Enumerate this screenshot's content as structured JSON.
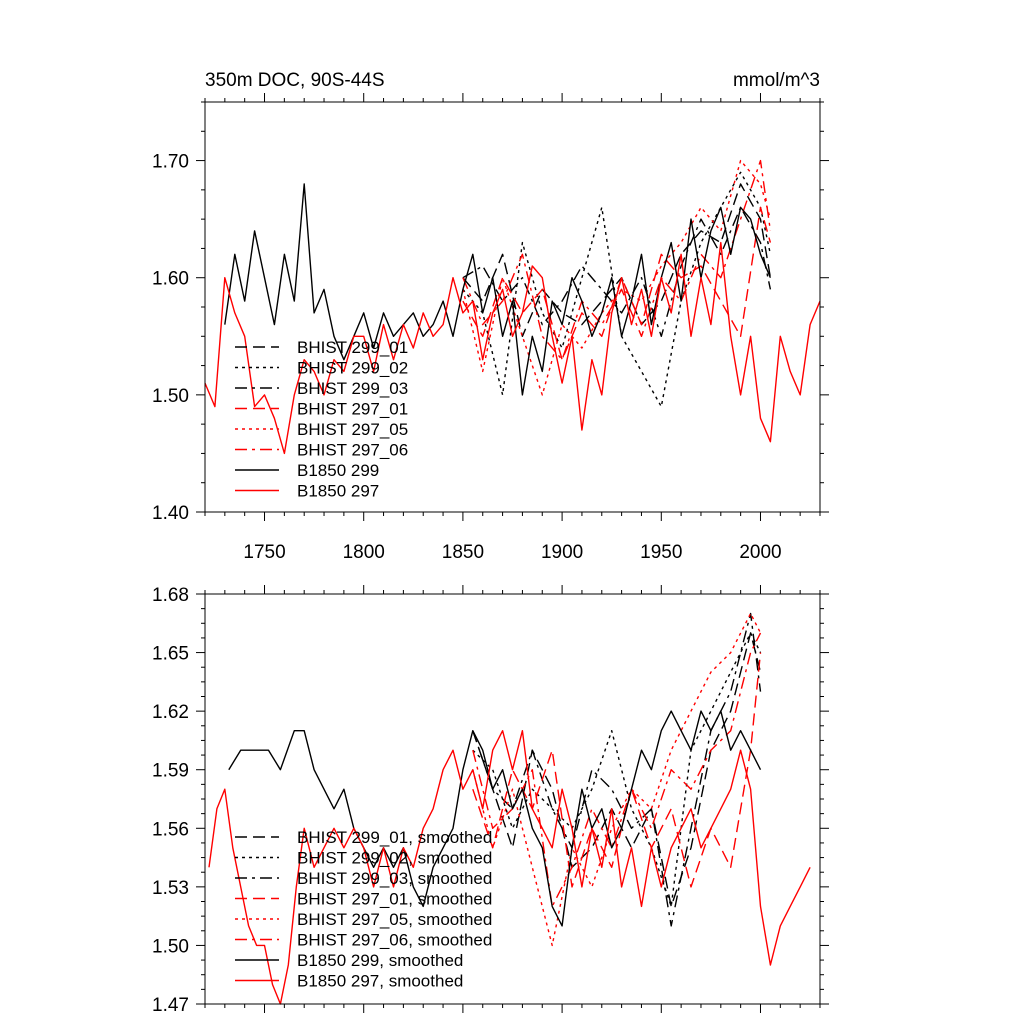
{
  "chart_data": [
    {
      "type": "line",
      "title": "350m DOC, 90S-44S",
      "units": "mmol/m^3",
      "xlim": [
        1720,
        2030
      ],
      "ylim": [
        1.4,
        1.75
      ],
      "xticks": [
        1750,
        1800,
        1850,
        1900,
        1950,
        2000
      ],
      "xtick_labels": [
        "1750",
        "1800",
        "1850",
        "1900",
        "1950",
        "2000"
      ],
      "yticks": [
        1.4,
        1.5,
        1.6,
        1.7
      ],
      "ytick_labels": [
        "1.40",
        "1.50",
        "1.60",
        "1.70"
      ],
      "legend_position": "lower-left",
      "series": [
        {
          "name": "BHIST 299_01",
          "color": "#000000",
          "dash": "dashed",
          "x": [
            1850,
            1860,
            1870,
            1880,
            1890,
            1900,
            1910,
            1920,
            1930,
            1940,
            1950,
            1960,
            1970,
            1980,
            1990,
            2000,
            2005
          ],
          "values": [
            1.6,
            1.58,
            1.62,
            1.55,
            1.59,
            1.57,
            1.56,
            1.58,
            1.6,
            1.56,
            1.58,
            1.62,
            1.64,
            1.63,
            1.68,
            1.65,
            1.6
          ]
        },
        {
          "name": "BHIST 299_02",
          "color": "#000000",
          "dash": "dotted",
          "x": [
            1850,
            1860,
            1870,
            1880,
            1890,
            1900,
            1910,
            1920,
            1930,
            1940,
            1950,
            1960,
            1970,
            1980,
            1990,
            2000,
            2005
          ],
          "values": [
            1.59,
            1.57,
            1.5,
            1.63,
            1.57,
            1.54,
            1.6,
            1.66,
            1.55,
            1.52,
            1.49,
            1.58,
            1.63,
            1.66,
            1.69,
            1.66,
            1.62
          ]
        },
        {
          "name": "BHIST 299_03",
          "color": "#000000",
          "dash": "dashdot",
          "x": [
            1850,
            1860,
            1870,
            1880,
            1890,
            1900,
            1910,
            1920,
            1930,
            1940,
            1950,
            1960,
            1970,
            1980,
            1990,
            2000,
            2005
          ],
          "values": [
            1.6,
            1.61,
            1.58,
            1.6,
            1.56,
            1.58,
            1.61,
            1.59,
            1.57,
            1.6,
            1.55,
            1.61,
            1.65,
            1.62,
            1.66,
            1.63,
            1.59
          ]
        },
        {
          "name": "BHIST 297_01",
          "color": "#ff0000",
          "dash": "dashed",
          "x": [
            1850,
            1860,
            1870,
            1880,
            1890,
            1900,
            1910,
            1920,
            1930,
            1940,
            1950,
            1960,
            1970,
            1980,
            1990,
            2000,
            2005
          ],
          "values": [
            1.58,
            1.55,
            1.6,
            1.57,
            1.59,
            1.53,
            1.57,
            1.55,
            1.6,
            1.56,
            1.62,
            1.6,
            1.61,
            1.58,
            1.55,
            1.66,
            1.63
          ]
        },
        {
          "name": "BHIST 297_05",
          "color": "#ff0000",
          "dash": "dotted",
          "x": [
            1850,
            1860,
            1870,
            1880,
            1890,
            1900,
            1910,
            1920,
            1930,
            1940,
            1950,
            1960,
            1970,
            1980,
            1990,
            2000,
            2005
          ],
          "values": [
            1.59,
            1.52,
            1.6,
            1.55,
            1.5,
            1.56,
            1.54,
            1.57,
            1.59,
            1.58,
            1.61,
            1.63,
            1.66,
            1.64,
            1.7,
            1.68,
            1.65
          ]
        },
        {
          "name": "BHIST 297_06",
          "color": "#ff0000",
          "dash": "dashdot",
          "x": [
            1850,
            1860,
            1870,
            1880,
            1890,
            1900,
            1910,
            1920,
            1930,
            1940,
            1950,
            1960,
            1970,
            1980,
            1990,
            2000,
            2005
          ],
          "values": [
            1.6,
            1.56,
            1.58,
            1.62,
            1.55,
            1.53,
            1.58,
            1.56,
            1.59,
            1.55,
            1.6,
            1.58,
            1.62,
            1.6,
            1.65,
            1.7,
            1.64
          ]
        },
        {
          "name": "B1850 299",
          "color": "#000000",
          "dash": "solid",
          "x": [
            1730,
            1735,
            1740,
            1745,
            1750,
            1755,
            1760,
            1765,
            1770,
            1775,
            1780,
            1785,
            1790,
            1795,
            1800,
            1805,
            1810,
            1815,
            1820,
            1825,
            1830,
            1835,
            1840,
            1845,
            1850,
            1855,
            1860,
            1865,
            1870,
            1875,
            1880,
            1885,
            1890,
            1895,
            1900,
            1905,
            1910,
            1915,
            1920,
            1925,
            1930,
            1935,
            1940,
            1945,
            1950,
            1955,
            1960,
            1965,
            1970,
            1975,
            1980,
            1985,
            1990,
            1995,
            2000,
            2005
          ],
          "values": [
            1.56,
            1.62,
            1.58,
            1.64,
            1.6,
            1.56,
            1.62,
            1.58,
            1.68,
            1.57,
            1.59,
            1.55,
            1.53,
            1.55,
            1.57,
            1.54,
            1.57,
            1.55,
            1.56,
            1.57,
            1.55,
            1.56,
            1.58,
            1.55,
            1.59,
            1.62,
            1.57,
            1.6,
            1.55,
            1.58,
            1.5,
            1.55,
            1.52,
            1.58,
            1.56,
            1.6,
            1.58,
            1.55,
            1.57,
            1.6,
            1.55,
            1.58,
            1.62,
            1.56,
            1.6,
            1.63,
            1.58,
            1.65,
            1.6,
            1.64,
            1.66,
            1.62,
            1.66,
            1.65,
            1.62,
            1.6
          ]
        },
        {
          "name": "B1850 297",
          "color": "#ff0000",
          "dash": "solid",
          "x": [
            1720,
            1725,
            1730,
            1735,
            1740,
            1745,
            1750,
            1755,
            1760,
            1765,
            1770,
            1775,
            1780,
            1785,
            1790,
            1795,
            1800,
            1805,
            1810,
            1815,
            1820,
            1825,
            1830,
            1835,
            1840,
            1845,
            1850,
            1855,
            1860,
            1865,
            1870,
            1875,
            1880,
            1885,
            1890,
            1895,
            1900,
            1905,
            1910,
            1915,
            1920,
            1925,
            1930,
            1935,
            1940,
            1945,
            1950,
            1955,
            1960,
            1965,
            1970,
            1975,
            1980,
            1985,
            1990,
            1995,
            2000,
            2005,
            2010,
            2015,
            2020,
            2025,
            2030
          ],
          "values": [
            1.51,
            1.49,
            1.6,
            1.57,
            1.55,
            1.49,
            1.5,
            1.48,
            1.45,
            1.5,
            1.53,
            1.52,
            1.5,
            1.53,
            1.52,
            1.55,
            1.55,
            1.52,
            1.56,
            1.53,
            1.56,
            1.54,
            1.57,
            1.55,
            1.56,
            1.6,
            1.57,
            1.58,
            1.53,
            1.57,
            1.59,
            1.55,
            1.57,
            1.61,
            1.6,
            1.55,
            1.51,
            1.55,
            1.47,
            1.53,
            1.5,
            1.57,
            1.6,
            1.56,
            1.59,
            1.55,
            1.6,
            1.57,
            1.62,
            1.55,
            1.6,
            1.56,
            1.63,
            1.55,
            1.5,
            1.55,
            1.48,
            1.46,
            1.55,
            1.52,
            1.5,
            1.56,
            1.58
          ]
        }
      ]
    },
    {
      "type": "line",
      "title": "",
      "xlim": [
        1720,
        2030
      ],
      "ylim": [
        1.47,
        1.68
      ],
      "xticks": [
        1750,
        1800,
        1850,
        1900,
        1950,
        2000
      ],
      "yticks": [
        1.47,
        1.5,
        1.53,
        1.56,
        1.59,
        1.62,
        1.65,
        1.68
      ],
      "ytick_labels": [
        "1.47",
        "1.50",
        "1.53",
        "1.56",
        "1.59",
        "1.62",
        "1.65",
        "1.68"
      ],
      "legend_position": "lower-left",
      "series": [
        {
          "name": "BHIST 299_01, smoothed",
          "color": "#000000",
          "dash": "dashed",
          "x": [
            1855,
            1865,
            1875,
            1885,
            1895,
            1905,
            1915,
            1925,
            1935,
            1945,
            1955,
            1965,
            1975,
            1985,
            1995,
            2000
          ],
          "values": [
            1.61,
            1.58,
            1.55,
            1.6,
            1.58,
            1.54,
            1.55,
            1.57,
            1.55,
            1.57,
            1.52,
            1.55,
            1.6,
            1.62,
            1.66,
            1.64
          ]
        },
        {
          "name": "BHIST 299_02, smoothed",
          "color": "#000000",
          "dash": "dotted",
          "x": [
            1855,
            1865,
            1875,
            1885,
            1895,
            1905,
            1915,
            1925,
            1935,
            1945,
            1955,
            1965,
            1975,
            1985,
            1995,
            2000
          ],
          "values": [
            1.6,
            1.59,
            1.56,
            1.58,
            1.57,
            1.56,
            1.58,
            1.61,
            1.57,
            1.55,
            1.52,
            1.6,
            1.62,
            1.64,
            1.66,
            1.65
          ]
        },
        {
          "name": "BHIST 299_03, smoothed",
          "color": "#000000",
          "dash": "dashdot",
          "x": [
            1855,
            1865,
            1875,
            1885,
            1895,
            1905,
            1915,
            1925,
            1935,
            1945,
            1955,
            1965,
            1975,
            1985,
            1995,
            2000
          ],
          "values": [
            1.61,
            1.58,
            1.57,
            1.6,
            1.57,
            1.55,
            1.59,
            1.58,
            1.56,
            1.57,
            1.51,
            1.56,
            1.61,
            1.63,
            1.67,
            1.63
          ]
        },
        {
          "name": "BHIST 297_01, smoothed",
          "color": "#ff0000",
          "dash": "dashed",
          "x": [
            1855,
            1865,
            1875,
            1885,
            1895,
            1905,
            1915,
            1925,
            1935,
            1945,
            1955,
            1965,
            1975,
            1985,
            1995,
            2000
          ],
          "values": [
            1.58,
            1.55,
            1.59,
            1.57,
            1.6,
            1.53,
            1.56,
            1.54,
            1.58,
            1.55,
            1.57,
            1.53,
            1.56,
            1.54,
            1.6,
            1.65
          ]
        },
        {
          "name": "BHIST 297_05, smoothed",
          "color": "#ff0000",
          "dash": "dotted",
          "x": [
            1855,
            1865,
            1875,
            1885,
            1895,
            1905,
            1915,
            1925,
            1935,
            1945,
            1955,
            1965,
            1975,
            1985,
            1995,
            2000
          ],
          "values": [
            1.59,
            1.55,
            1.58,
            1.54,
            1.5,
            1.55,
            1.53,
            1.56,
            1.58,
            1.57,
            1.6,
            1.62,
            1.64,
            1.65,
            1.67,
            1.66
          ]
        },
        {
          "name": "BHIST 297_06, smoothed",
          "color": "#ff0000",
          "dash": "dashdot",
          "x": [
            1855,
            1865,
            1875,
            1885,
            1895,
            1905,
            1915,
            1925,
            1935,
            1945,
            1955,
            1965,
            1975,
            1985,
            1995,
            2000
          ],
          "values": [
            1.6,
            1.56,
            1.57,
            1.59,
            1.52,
            1.54,
            1.57,
            1.55,
            1.58,
            1.56,
            1.59,
            1.58,
            1.6,
            1.61,
            1.65,
            1.66
          ]
        },
        {
          "name": "B1850 299, smoothed",
          "color": "#000000",
          "dash": "solid",
          "x": [
            1732,
            1738,
            1745,
            1752,
            1758,
            1765,
            1770,
            1775,
            1780,
            1785,
            1790,
            1795,
            1800,
            1805,
            1810,
            1815,
            1820,
            1825,
            1830,
            1835,
            1840,
            1845,
            1850,
            1855,
            1860,
            1865,
            1870,
            1875,
            1880,
            1885,
            1890,
            1895,
            1900,
            1905,
            1910,
            1915,
            1920,
            1925,
            1930,
            1935,
            1940,
            1945,
            1950,
            1955,
            1960,
            1965,
            1970,
            1975,
            1980,
            1985,
            1990,
            1995,
            2000
          ],
          "values": [
            1.59,
            1.6,
            1.6,
            1.6,
            1.59,
            1.61,
            1.61,
            1.59,
            1.58,
            1.57,
            1.58,
            1.56,
            1.55,
            1.54,
            1.55,
            1.54,
            1.55,
            1.53,
            1.52,
            1.54,
            1.55,
            1.56,
            1.59,
            1.61,
            1.6,
            1.58,
            1.59,
            1.57,
            1.58,
            1.56,
            1.55,
            1.52,
            1.51,
            1.55,
            1.58,
            1.56,
            1.57,
            1.55,
            1.56,
            1.58,
            1.6,
            1.59,
            1.61,
            1.62,
            1.61,
            1.6,
            1.62,
            1.61,
            1.62,
            1.6,
            1.61,
            1.6,
            1.59
          ]
        },
        {
          "name": "B1850 297, smoothed",
          "color": "#ff0000",
          "dash": "solid",
          "x": [
            1722,
            1726,
            1730,
            1734,
            1738,
            1742,
            1746,
            1750,
            1754,
            1758,
            1762,
            1766,
            1770,
            1775,
            1780,
            1785,
            1790,
            1795,
            1800,
            1805,
            1810,
            1815,
            1820,
            1825,
            1830,
            1835,
            1840,
            1845,
            1850,
            1855,
            1860,
            1865,
            1870,
            1875,
            1880,
            1885,
            1890,
            1895,
            1900,
            1905,
            1910,
            1915,
            1920,
            1925,
            1930,
            1935,
            1940,
            1945,
            1950,
            1955,
            1960,
            1965,
            1970,
            1975,
            1980,
            1985,
            1990,
            1995,
            2000,
            2005,
            2010,
            2015,
            2020,
            2025
          ],
          "values": [
            1.54,
            1.57,
            1.58,
            1.55,
            1.53,
            1.51,
            1.5,
            1.5,
            1.48,
            1.47,
            1.49,
            1.53,
            1.56,
            1.54,
            1.55,
            1.56,
            1.55,
            1.56,
            1.55,
            1.53,
            1.55,
            1.53,
            1.55,
            1.54,
            1.56,
            1.57,
            1.59,
            1.6,
            1.58,
            1.59,
            1.57,
            1.6,
            1.61,
            1.59,
            1.61,
            1.57,
            1.56,
            1.55,
            1.58,
            1.56,
            1.53,
            1.56,
            1.54,
            1.57,
            1.53,
            1.55,
            1.52,
            1.55,
            1.53,
            1.55,
            1.56,
            1.57,
            1.55,
            1.56,
            1.57,
            1.58,
            1.6,
            1.58,
            1.52,
            1.49,
            1.51,
            1.52,
            1.53,
            1.54
          ]
        }
      ]
    }
  ]
}
